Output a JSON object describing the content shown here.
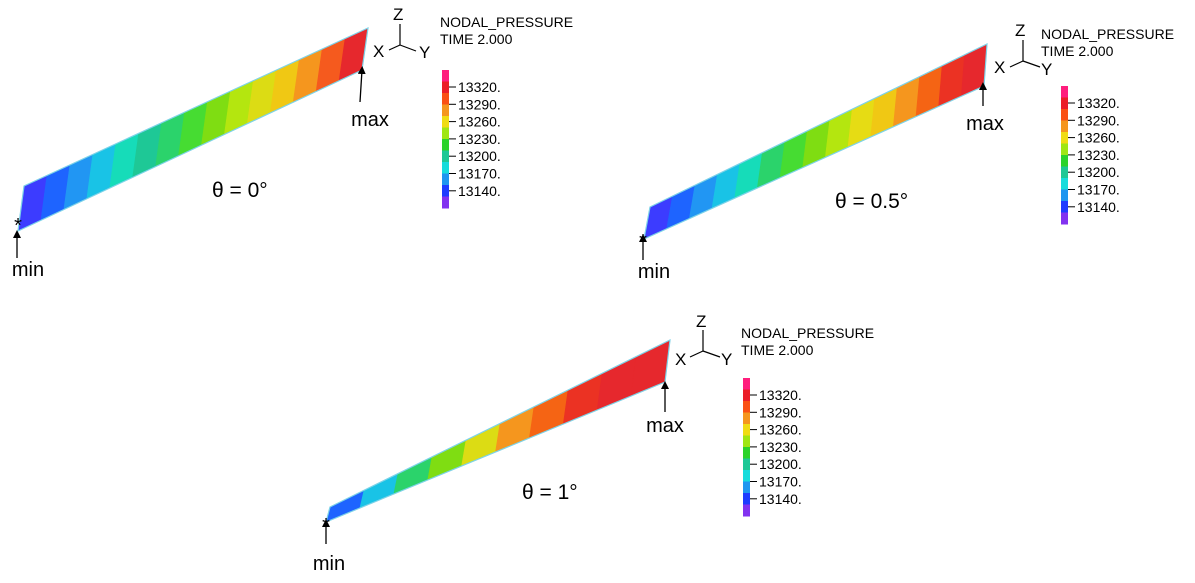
{
  "panels": [
    {
      "variable": "NODAL_PRESSURE",
      "time": "TIME 2.000",
      "theta_label": "θ = 0°",
      "min_label": "min",
      "max_label": "max",
      "axes": {
        "z": "Z",
        "x": "X",
        "y": "Y"
      },
      "band_colors": [
        "#3c3cff",
        "#1e64ff",
        "#2196f3",
        "#19c3e6",
        "#16dcb9",
        "#1ec896",
        "#2bd36b",
        "#46dc32",
        "#7fdd12",
        "#b4e60f",
        "#dcdc14",
        "#f0c814",
        "#f5961e",
        "#f55a1e",
        "#e6282d"
      ]
    },
    {
      "variable": "NODAL_PRESSURE",
      "time": "TIME 2.000",
      "theta_label": "θ = 0.5°",
      "min_label": "min",
      "max_label": "max",
      "axes": {
        "z": "Z",
        "x": "X",
        "y": "Y"
      },
      "band_colors": [
        "#3c3cff",
        "#1e64ff",
        "#2196f3",
        "#19c3e6",
        "#16dcb9",
        "#2bd36b",
        "#46dc32",
        "#7fdd12",
        "#b4e60f",
        "#e6dc14",
        "#f0c814",
        "#f5961e",
        "#f56414",
        "#eb3223",
        "#e6282d"
      ]
    },
    {
      "variable": "NODAL_PRESSURE",
      "time": "TIME 2.000",
      "theta_label": "θ = 1°",
      "min_label": "min",
      "max_label": "max",
      "axes": {
        "z": "Z",
        "x": "X",
        "y": "Y"
      },
      "band_colors": [
        "#1e64ff",
        "#19c3e6",
        "#2bd36b",
        "#7fdd12",
        "#dcdc14",
        "#f5961e",
        "#f56414",
        "#eb3223",
        "#e6282d",
        "#e6282d"
      ]
    }
  ],
  "legend": {
    "ticks": [
      "13320.",
      "13290.",
      "13260.",
      "13230.",
      "13200.",
      "13170.",
      "13140."
    ],
    "colors": [
      "#ff1e7d",
      "#eb1e28",
      "#fa5014",
      "#f5961e",
      "#f0dc14",
      "#a0e614",
      "#2bd32b",
      "#1ec896",
      "#16dcdc",
      "#1e96f0",
      "#1e3cff",
      "#8232f0"
    ]
  }
}
